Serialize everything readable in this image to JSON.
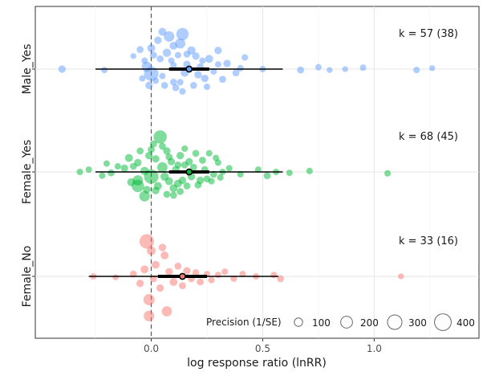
{
  "chart_data": {
    "type": "scatter",
    "title": "",
    "xlabel": "log response ratio (lnRR)",
    "ylabel": "",
    "xlim": [
      -0.52,
      1.47
    ],
    "x_ticks": [
      0.0,
      0.5,
      1.0
    ],
    "x_tick_labels": [
      "0.0",
      "0.5",
      "1.0"
    ],
    "grid": true,
    "reference_line": 0,
    "categories": [
      "Male_Yes",
      "Female_Yes",
      "Female_No"
    ],
    "series": [
      {
        "name": "Male_Yes",
        "color": "#619CFF",
        "k_label": "k = 57 (38)",
        "estimate": 0.17,
        "ci": [
          0.08,
          0.26
        ],
        "pi": [
          -0.25,
          0.59
        ],
        "points": [
          {
            "x": -0.4,
            "jitter": 0.0,
            "precision": 80
          },
          {
            "x": -0.21,
            "jitter": -0.02,
            "precision": 60
          },
          {
            "x": -0.05,
            "jitter": 0.42,
            "precision": 70
          },
          {
            "x": -0.03,
            "jitter": 0.18,
            "precision": 60
          },
          {
            "x": -0.08,
            "jitter": 0.28,
            "precision": 50
          },
          {
            "x": -0.02,
            "jitter": 0.05,
            "precision": 150
          },
          {
            "x": 0.0,
            "jitter": -0.1,
            "precision": 300
          },
          {
            "x": 0.0,
            "jitter": 0.45,
            "precision": 90
          },
          {
            "x": 0.03,
            "jitter": 0.62,
            "precision": 80
          },
          {
            "x": 0.05,
            "jitter": 0.8,
            "precision": 90
          },
          {
            "x": 0.07,
            "jitter": 0.35,
            "precision": 100
          },
          {
            "x": 0.08,
            "jitter": 0.7,
            "precision": 160
          },
          {
            "x": 0.1,
            "jitter": 0.5,
            "precision": 90
          },
          {
            "x": 0.1,
            "jitter": -0.28,
            "precision": 70
          },
          {
            "x": 0.13,
            "jitter": 0.55,
            "precision": 150
          },
          {
            "x": 0.14,
            "jitter": 0.75,
            "precision": 220
          },
          {
            "x": 0.15,
            "jitter": -0.08,
            "precision": 90
          },
          {
            "x": 0.16,
            "jitter": 0.1,
            "precision": 80
          },
          {
            "x": 0.18,
            "jitter": 0.4,
            "precision": 100
          },
          {
            "x": 0.2,
            "jitter": 0.28,
            "precision": 80
          },
          {
            "x": 0.22,
            "jitter": 0.05,
            "precision": 70
          },
          {
            "x": 0.24,
            "jitter": -0.2,
            "precision": 80
          },
          {
            "x": 0.26,
            "jitter": 0.22,
            "precision": 90
          },
          {
            "x": 0.28,
            "jitter": -0.05,
            "precision": 60
          },
          {
            "x": 0.3,
            "jitter": 0.4,
            "precision": 80
          },
          {
            "x": 0.32,
            "jitter": -0.22,
            "precision": 70
          },
          {
            "x": 0.34,
            "jitter": 0.12,
            "precision": 80
          },
          {
            "x": 0.38,
            "jitter": -0.08,
            "precision": 70
          },
          {
            "x": 0.4,
            "jitter": 0.02,
            "precision": 60
          },
          {
            "x": 0.42,
            "jitter": 0.25,
            "precision": 60
          },
          {
            "x": 0.5,
            "jitter": 0.0,
            "precision": 60
          },
          {
            "x": 0.67,
            "jitter": -0.02,
            "precision": 70
          },
          {
            "x": 0.75,
            "jitter": 0.04,
            "precision": 60
          },
          {
            "x": 0.8,
            "jitter": -0.02,
            "precision": 50
          },
          {
            "x": 0.87,
            "jitter": 0.0,
            "precision": 50
          },
          {
            "x": 0.95,
            "jitter": 0.03,
            "precision": 60
          },
          {
            "x": 1.19,
            "jitter": -0.02,
            "precision": 60
          },
          {
            "x": 1.26,
            "jitter": 0.02,
            "precision": 50
          },
          {
            "x": 0.02,
            "jitter": -0.25,
            "precision": 60
          },
          {
            "x": 0.06,
            "jitter": -0.35,
            "precision": 70
          },
          {
            "x": 0.09,
            "jitter": 0.18,
            "precision": 60
          },
          {
            "x": 0.11,
            "jitter": -0.4,
            "precision": 70
          },
          {
            "x": 0.12,
            "jitter": 0.3,
            "precision": 60
          },
          {
            "x": 0.13,
            "jitter": -0.28,
            "precision": 60
          },
          {
            "x": -0.01,
            "jitter": -0.35,
            "precision": 80
          },
          {
            "x": 0.04,
            "jitter": 0.22,
            "precision": 70
          },
          {
            "x": 0.19,
            "jitter": -0.35,
            "precision": 70
          },
          {
            "x": 0.23,
            "jitter": 0.18,
            "precision": 60
          },
          {
            "x": 0.25,
            "jitter": -0.38,
            "precision": 60
          },
          {
            "x": 0.05,
            "jitter": -0.15,
            "precision": 60
          },
          {
            "x": 0.16,
            "jitter": 0.32,
            "precision": 70
          },
          {
            "x": -0.04,
            "jitter": -0.2,
            "precision": 60
          },
          {
            "x": 0.01,
            "jitter": 0.3,
            "precision": 70
          },
          {
            "x": 0.1,
            "jitter": 0.08,
            "precision": 60
          },
          {
            "x": 0.3,
            "jitter": 0.1,
            "precision": 60
          },
          {
            "x": 0.14,
            "jitter": -0.48,
            "precision": 60
          },
          {
            "x": 0.21,
            "jitter": -0.12,
            "precision": 80
          }
        ]
      },
      {
        "name": "Female_Yes",
        "color": "#00BA38",
        "k_label": "k = 68 (45)",
        "estimate": 0.17,
        "ci": [
          0.08,
          0.26
        ],
        "pi": [
          -0.25,
          0.59
        ],
        "points": [
          {
            "x": -0.32,
            "jitter": 0.0,
            "precision": 60
          },
          {
            "x": -0.28,
            "jitter": 0.05,
            "precision": 60
          },
          {
            "x": -0.22,
            "jitter": -0.08,
            "precision": 60
          },
          {
            "x": -0.2,
            "jitter": 0.18,
            "precision": 60
          },
          {
            "x": -0.18,
            "jitter": -0.02,
            "precision": 70
          },
          {
            "x": -0.12,
            "jitter": 0.08,
            "precision": 80
          },
          {
            "x": -0.1,
            "jitter": 0.3,
            "precision": 90
          },
          {
            "x": -0.09,
            "jitter": -0.22,
            "precision": 90
          },
          {
            "x": -0.06,
            "jitter": 0.2,
            "precision": 80
          },
          {
            "x": -0.06,
            "jitter": -0.18,
            "precision": 150
          },
          {
            "x": -0.06,
            "jitter": -0.3,
            "precision": 220
          },
          {
            "x": -0.05,
            "jitter": 0.45,
            "precision": 70
          },
          {
            "x": -0.03,
            "jitter": 0.02,
            "precision": 100
          },
          {
            "x": -0.03,
            "jitter": -0.52,
            "precision": 160
          },
          {
            "x": -0.01,
            "jitter": 0.35,
            "precision": 80
          },
          {
            "x": 0.0,
            "jitter": -0.1,
            "precision": 300
          },
          {
            "x": 0.01,
            "jitter": 0.6,
            "precision": 70
          },
          {
            "x": 0.02,
            "jitter": 0.28,
            "precision": 80
          },
          {
            "x": 0.03,
            "jitter": -0.3,
            "precision": 90
          },
          {
            "x": 0.04,
            "jitter": 0.75,
            "precision": 250
          },
          {
            "x": 0.05,
            "jitter": 0.1,
            "precision": 150
          },
          {
            "x": 0.06,
            "jitter": -0.1,
            "precision": 100
          },
          {
            "x": 0.07,
            "jitter": 0.45,
            "precision": 80
          },
          {
            "x": 0.08,
            "jitter": -0.2,
            "precision": 90
          },
          {
            "x": 0.09,
            "jitter": 0.22,
            "precision": 80
          },
          {
            "x": 0.1,
            "jitter": -0.35,
            "precision": 90
          },
          {
            "x": 0.11,
            "jitter": 0.05,
            "precision": 80
          },
          {
            "x": 0.12,
            "jitter": -0.25,
            "precision": 90
          },
          {
            "x": 0.13,
            "jitter": 0.35,
            "precision": 80
          },
          {
            "x": 0.14,
            "jitter": -0.18,
            "precision": 80
          },
          {
            "x": 0.15,
            "jitter": 0.15,
            "precision": 70
          },
          {
            "x": 0.17,
            "jitter": 0.22,
            "precision": 80
          },
          {
            "x": 0.18,
            "jitter": -0.1,
            "precision": 80
          },
          {
            "x": 0.2,
            "jitter": 0.4,
            "precision": 70
          },
          {
            "x": 0.22,
            "jitter": -0.18,
            "precision": 80
          },
          {
            "x": 0.23,
            "jitter": 0.25,
            "precision": 70
          },
          {
            "x": 0.25,
            "jitter": -0.15,
            "precision": 70
          },
          {
            "x": 0.26,
            "jitter": 0.4,
            "precision": 60
          },
          {
            "x": 0.28,
            "jitter": -0.05,
            "precision": 70
          },
          {
            "x": 0.3,
            "jitter": 0.2,
            "precision": 60
          },
          {
            "x": 0.32,
            "jitter": 0.0,
            "precision": 60
          },
          {
            "x": 0.35,
            "jitter": 0.08,
            "precision": 60
          },
          {
            "x": 0.4,
            "jitter": -0.05,
            "precision": 60
          },
          {
            "x": 0.48,
            "jitter": 0.05,
            "precision": 60
          },
          {
            "x": 0.52,
            "jitter": -0.08,
            "precision": 70
          },
          {
            "x": 0.56,
            "jitter": 0.0,
            "precision": 60
          },
          {
            "x": 0.62,
            "jitter": -0.02,
            "precision": 60
          },
          {
            "x": 0.71,
            "jitter": 0.02,
            "precision": 60
          },
          {
            "x": 1.06,
            "jitter": -0.03,
            "precision": 60
          },
          {
            "x": 0.02,
            "jitter": -0.4,
            "precision": 80
          },
          {
            "x": 0.05,
            "jitter": 0.55,
            "precision": 70
          },
          {
            "x": 0.08,
            "jitter": 0.32,
            "precision": 70
          },
          {
            "x": 0.1,
            "jitter": -0.5,
            "precision": 70
          },
          {
            "x": 0.12,
            "jitter": 0.15,
            "precision": 70
          },
          {
            "x": 0.13,
            "jitter": -0.42,
            "precision": 70
          },
          {
            "x": 0.16,
            "jitter": -0.3,
            "precision": 70
          },
          {
            "x": 0.19,
            "jitter": 0.1,
            "precision": 70
          },
          {
            "x": 0.21,
            "jitter": -0.28,
            "precision": 70
          },
          {
            "x": 0.24,
            "jitter": 0.05,
            "precision": 70
          },
          {
            "x": 0.27,
            "jitter": -0.2,
            "precision": 60
          },
          {
            "x": 0.29,
            "jitter": 0.3,
            "precision": 60
          },
          {
            "x": 0.31,
            "jitter": -0.12,
            "precision": 60
          },
          {
            "x": -0.15,
            "jitter": 0.12,
            "precision": 60
          },
          {
            "x": -0.08,
            "jitter": 0.12,
            "precision": 70
          },
          {
            "x": -0.02,
            "jitter": -0.38,
            "precision": 80
          },
          {
            "x": 0.0,
            "jitter": 0.48,
            "precision": 70
          },
          {
            "x": 0.07,
            "jitter": -0.48,
            "precision": 70
          },
          {
            "x": 0.15,
            "jitter": 0.5,
            "precision": 60
          }
        ]
      },
      {
        "name": "Female_No",
        "color": "#F8766D",
        "k_label": "k = 33 (16)",
        "estimate": 0.14,
        "ci": [
          0.03,
          0.25
        ],
        "pi": [
          -0.28,
          0.57
        ],
        "points": [
          {
            "x": -0.26,
            "jitter": 0.0,
            "precision": 60
          },
          {
            "x": -0.16,
            "jitter": -0.02,
            "precision": 50
          },
          {
            "x": -0.08,
            "jitter": 0.05,
            "precision": 70
          },
          {
            "x": -0.05,
            "jitter": -0.15,
            "precision": 80
          },
          {
            "x": -0.03,
            "jitter": 0.15,
            "precision": 90
          },
          {
            "x": -0.02,
            "jitter": 0.75,
            "precision": 300
          },
          {
            "x": -0.01,
            "jitter": -0.5,
            "precision": 180
          },
          {
            "x": -0.01,
            "jitter": -0.85,
            "precision": 160
          },
          {
            "x": 0.0,
            "jitter": 0.55,
            "precision": 110
          },
          {
            "x": 0.01,
            "jitter": -0.05,
            "precision": 70
          },
          {
            "x": 0.02,
            "jitter": 0.25,
            "precision": 90
          },
          {
            "x": 0.04,
            "jitter": -0.25,
            "precision": 80
          },
          {
            "x": 0.06,
            "jitter": 0.45,
            "precision": 90
          },
          {
            "x": 0.07,
            "jitter": -0.75,
            "precision": 150
          },
          {
            "x": 0.08,
            "jitter": 0.1,
            "precision": 80
          },
          {
            "x": 0.1,
            "jitter": -0.12,
            "precision": 90
          },
          {
            "x": 0.12,
            "jitter": 0.22,
            "precision": 70
          },
          {
            "x": 0.14,
            "jitter": -0.2,
            "precision": 70
          },
          {
            "x": 0.16,
            "jitter": 0.12,
            "precision": 80
          },
          {
            "x": 0.18,
            "jitter": -0.05,
            "precision": 70
          },
          {
            "x": 0.2,
            "jitter": 0.08,
            "precision": 70
          },
          {
            "x": 0.22,
            "jitter": -0.12,
            "precision": 70
          },
          {
            "x": 0.25,
            "jitter": 0.05,
            "precision": 60
          },
          {
            "x": 0.27,
            "jitter": -0.08,
            "precision": 60
          },
          {
            "x": 0.3,
            "jitter": 0.03,
            "precision": 60
          },
          {
            "x": 0.33,
            "jitter": 0.1,
            "precision": 60
          },
          {
            "x": 0.37,
            "jitter": -0.05,
            "precision": 60
          },
          {
            "x": 0.41,
            "jitter": 0.05,
            "precision": 60
          },
          {
            "x": 0.47,
            "jitter": 0.0,
            "precision": 60
          },
          {
            "x": 0.55,
            "jitter": 0.03,
            "precision": 60
          },
          {
            "x": 0.58,
            "jitter": -0.05,
            "precision": 70
          },
          {
            "x": 1.12,
            "jitter": 0.0,
            "precision": 50
          },
          {
            "x": 0.05,
            "jitter": 0.62,
            "precision": 80
          }
        ]
      }
    ],
    "legend": {
      "title": "Precision (1/SE)",
      "placement": "bottom-right",
      "entries": [
        {
          "label": "100",
          "precision": 100
        },
        {
          "label": "200",
          "precision": 200
        },
        {
          "label": "300",
          "precision": 300
        },
        {
          "label": "400",
          "precision": 400
        }
      ]
    }
  }
}
